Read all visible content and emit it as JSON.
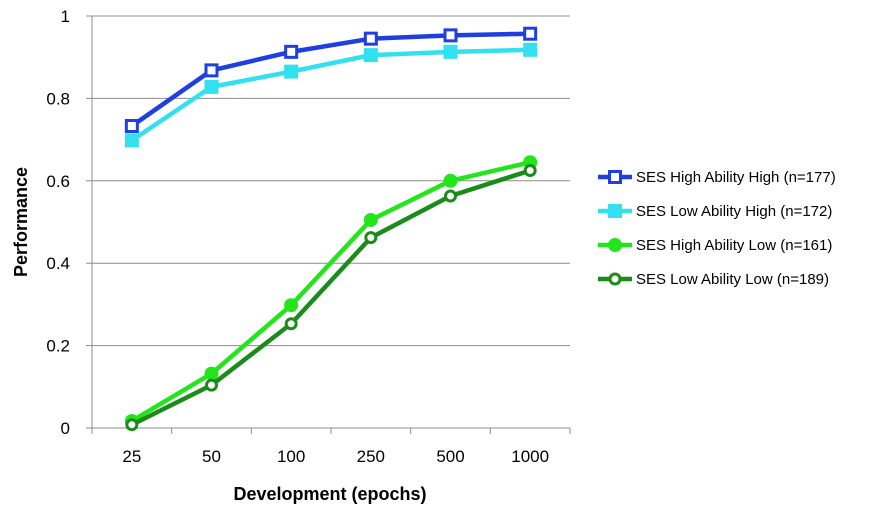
{
  "chart_data": {
    "type": "line",
    "xlabel": "Development (epochs)",
    "ylabel": "Performance",
    "categories": [
      "25",
      "50",
      "100",
      "250",
      "500",
      "1000"
    ],
    "ylim": [
      0,
      1
    ],
    "yticks": [
      0,
      0.2,
      0.4,
      0.6,
      0.8,
      1
    ],
    "ytick_labels": [
      "0",
      "0.2",
      "0.4",
      "0.6",
      "0.8",
      "1"
    ],
    "grid": "horizontal",
    "legend_position": "right",
    "series": [
      {
        "name": "SES High Ability High (n=177)",
        "color": "#1f3fe0",
        "marker": "hollow-square",
        "values": [
          0.733,
          0.868,
          0.913,
          0.945,
          0.953,
          0.957
        ]
      },
      {
        "name": "SES Low Ability High (n=172)",
        "color": "#33e0f0",
        "marker": "square",
        "values": [
          0.698,
          0.828,
          0.865,
          0.905,
          0.913,
          0.918
        ]
      },
      {
        "name": "SES High Ability Low (n=161)",
        "color": "#22e61a",
        "marker": "circle",
        "values": [
          0.017,
          0.132,
          0.298,
          0.505,
          0.6,
          0.645
        ]
      },
      {
        "name": "SES Low Ability Low (n=189)",
        "color": "#1a8c1a",
        "marker": "hollow-circle",
        "values": [
          0.008,
          0.104,
          0.253,
          0.462,
          0.563,
          0.625
        ]
      }
    ]
  }
}
